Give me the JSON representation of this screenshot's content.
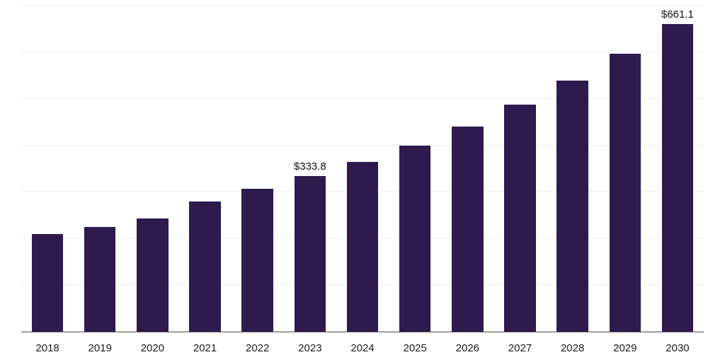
{
  "chart_data": {
    "type": "bar",
    "title": "",
    "xlabel": "",
    "ylabel": "",
    "categories": [
      "2018",
      "2019",
      "2020",
      "2021",
      "2022",
      "2023",
      "2024",
      "2025",
      "2026",
      "2027",
      "2028",
      "2029",
      "2030"
    ],
    "values": [
      210,
      225,
      243,
      280,
      306,
      333.8,
      365,
      400,
      440,
      487,
      539,
      597,
      661.1
    ],
    "point_labels": [
      "",
      "",
      "",
      "",
      "",
      "$333.8",
      "",
      "",
      "",
      "",
      "",
      "",
      "$661.1"
    ],
    "ylim": [
      0,
      700
    ],
    "grid_step": 100,
    "grid": "horizontal",
    "legend_position": "none",
    "bar_color": "#2e1a4d",
    "axis_line_color": "#4a4a4a",
    "gridline_color": "#ededed"
  }
}
